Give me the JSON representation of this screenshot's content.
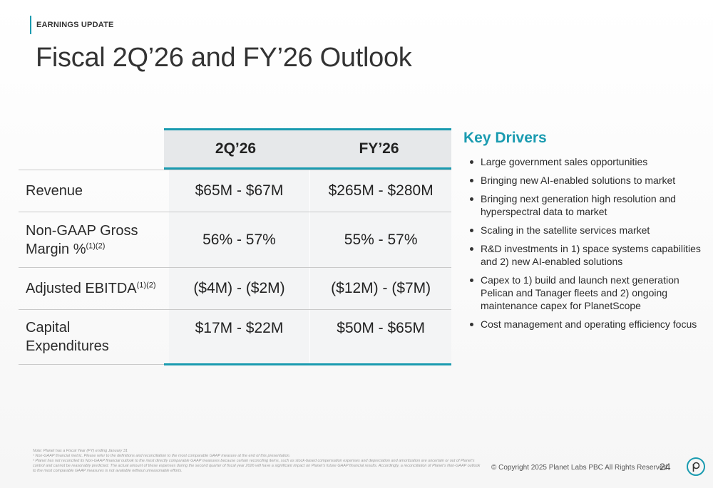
{
  "header": {
    "section_tag": "EARNINGS UPDATE",
    "title": "Fiscal 2Q’26 and FY’26 Outlook"
  },
  "table": {
    "columns": [
      "2Q’26",
      "FY’26"
    ],
    "rows": [
      {
        "label": "Revenue",
        "sup": "",
        "values": [
          "$65M - $67M",
          "$265M - $280M"
        ]
      },
      {
        "label": "Non-GAAP Gross Margin %",
        "sup": "(1)(2)",
        "values": [
          "56% - 57%",
          "55% - 57%"
        ]
      },
      {
        "label": "Adjusted EBITDA",
        "sup": "(1)(2)",
        "values": [
          "($4M) - ($2M)",
          "($12M) - ($7M)"
        ]
      },
      {
        "label": "Capital Expenditures",
        "sup": "",
        "values": [
          "$17M - $22M",
          "$50M - $65M"
        ]
      }
    ]
  },
  "drivers": {
    "title": "Key Drivers",
    "items": [
      "Large government sales opportunities",
      "Bringing new AI-enabled solutions to market",
      "Bringing next generation high resolution and hyperspectral data to market",
      "Scaling in the satellite services market",
      "R&D investments in 1) space systems capabilities and 2) new AI-enabled solutions",
      "Capex to 1) build and launch next generation Pelican and Tanager fleets and 2) ongoing maintenance capex for PlanetScope",
      "Cost management and operating efficiency focus"
    ]
  },
  "footer": {
    "note": "Note: Planet has a Fiscal Year (FY) ending January 31",
    "footnote1": "¹ Non-GAAP financial metric. Please refer to the definitions and reconciliation to the most comparable GAAP measure at the end of this presentation.",
    "footnote2": "² Planet has not reconciled its Non-GAAP financial outlook to the most directly comparable GAAP measures because certain reconciling items, such as stock-based compensation expenses and depreciation and amortization are uncertain or out of Planet’s control and cannot be reasonably predicted. The actual amount of these expenses during the second quarter of fiscal year 2026 will have a significant impact on Planet’s future GAAP financial results. Accordingly, a reconciliation of Planet’s Non-GAAP outlook to the most comparable GAAP measures is not available without unreasonable efforts.",
    "copyright": "© Copyright 2025 Planet Labs PBC  All Rights Reserved",
    "page_number": "24",
    "logo_letter": "p"
  },
  "colors": {
    "accent": "#1a9bb0",
    "header_fill": "#e6e8ea",
    "cell_fill": "#f3f4f5"
  }
}
